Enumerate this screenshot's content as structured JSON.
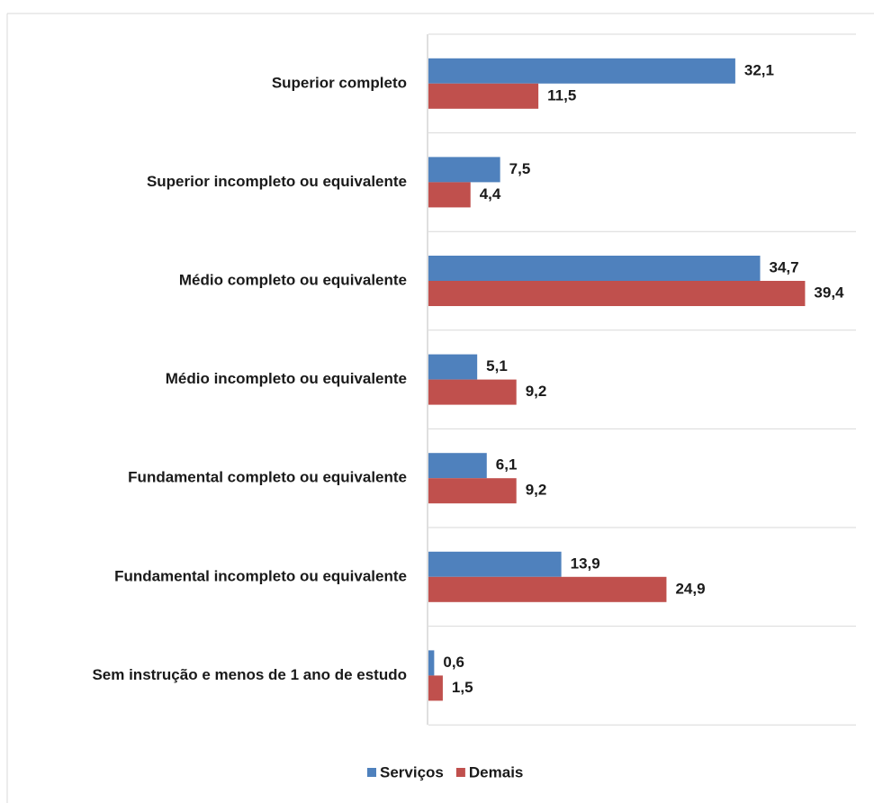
{
  "chart_data": {
    "type": "bar",
    "orientation": "horizontal",
    "categories": [
      "Superior completo",
      "Superior incompleto ou equivalente",
      "Médio completo ou equivalente",
      "Médio incompleto ou equivalente",
      "Fundamental completo ou equivalente",
      "Fundamental incompleto ou equivalente",
      "Sem instrução e menos de 1 ano de estudo"
    ],
    "series": [
      {
        "name": "Serviços",
        "color": "#4f81bd",
        "values": [
          32.1,
          7.5,
          34.7,
          5.1,
          6.1,
          13.9,
          0.6
        ],
        "value_labels": [
          "32,1",
          "7,5",
          "34,7",
          "5,1",
          "6,1",
          "13,9",
          "0,6"
        ]
      },
      {
        "name": "Demais",
        "color": "#c0504d",
        "values": [
          11.5,
          4.4,
          39.4,
          9.2,
          9.2,
          24.9,
          1.5
        ],
        "value_labels": [
          "11,5",
          "4,4",
          "39,4",
          "9,2",
          "9,2",
          "24,9",
          "1,5"
        ]
      }
    ],
    "legend": "bottom"
  }
}
